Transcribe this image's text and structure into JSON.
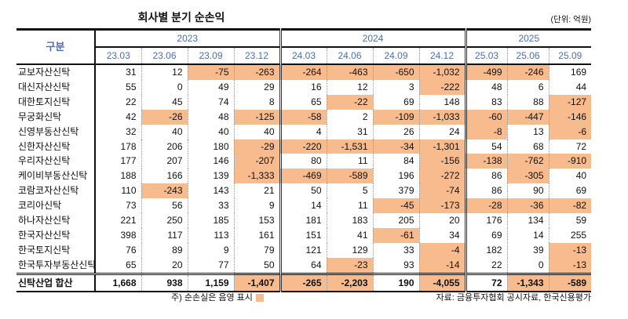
{
  "title": "회사별 분기 순손익",
  "unit": "(단위: 억원)",
  "header_label": "구분",
  "years": [
    {
      "label": "2023",
      "span": 4
    },
    {
      "label": "2024",
      "span": 4
    },
    {
      "label": "2025",
      "span": 3
    }
  ],
  "quarters": [
    "23.03",
    "23.06",
    "23.09",
    "23.12",
    "24.03",
    "24.06",
    "24.09",
    "24.12",
    "25.03",
    "25.06",
    "25.09"
  ],
  "rows": [
    {
      "name": "교보자산신탁",
      "values": [
        "31",
        "12",
        "-75",
        "-263",
        "-264",
        "-463",
        "-650",
        "-1,032",
        "-499",
        "-246",
        "169"
      ]
    },
    {
      "name": "대신자산신탁",
      "values": [
        "55",
        "0",
        "49",
        "29",
        "16",
        "12",
        "3",
        "-222",
        "48",
        "6",
        "44"
      ]
    },
    {
      "name": "대한토지신탁",
      "values": [
        "22",
        "45",
        "74",
        "8",
        "65",
        "-22",
        "69",
        "148",
        "83",
        "88",
        "-127"
      ]
    },
    {
      "name": "무궁화신탁",
      "values": [
        "42",
        "-26",
        "48",
        "-125",
        "-58",
        "2",
        "-109",
        "-1,033",
        "-60",
        "-447",
        "-146"
      ]
    },
    {
      "name": "신영부동산신탁",
      "values": [
        "32",
        "40",
        "40",
        "40",
        "4",
        "31",
        "26",
        "24",
        "-8",
        "13",
        "-6"
      ]
    },
    {
      "name": "신한자산신탁",
      "values": [
        "178",
        "206",
        "180",
        "-29",
        "-220",
        "-1,531",
        "-34",
        "-1,301",
        "54",
        "68",
        "72"
      ]
    },
    {
      "name": "우리자산신탁",
      "values": [
        "177",
        "207",
        "146",
        "-207",
        "80",
        "11",
        "84",
        "-156",
        "-138",
        "-762",
        "-910"
      ]
    },
    {
      "name": "케이비부동산신탁",
      "values": [
        "188",
        "166",
        "139",
        "-1,333",
        "-469",
        "-589",
        "196",
        "-272",
        "86",
        "-305",
        "40"
      ]
    },
    {
      "name": "코람코자산신탁",
      "values": [
        "110",
        "-243",
        "143",
        "21",
        "50",
        "5",
        "379",
        "-74",
        "86",
        "90",
        "69"
      ]
    },
    {
      "name": "코리아신탁",
      "values": [
        "73",
        "56",
        "33",
        "9",
        "14",
        "11",
        "-45",
        "-173",
        "-28",
        "-36",
        "-82"
      ]
    },
    {
      "name": "하나자산신탁",
      "values": [
        "221",
        "250",
        "185",
        "153",
        "181",
        "183",
        "205",
        "20",
        "176",
        "134",
        "59"
      ]
    },
    {
      "name": "한국자산신탁",
      "values": [
        "398",
        "117",
        "113",
        "161",
        "151",
        "41",
        "-61",
        "34",
        "69",
        "14",
        "255"
      ]
    },
    {
      "name": "한국토지신탁",
      "values": [
        "76",
        "89",
        "9",
        "79",
        "121",
        "129",
        "33",
        "-4",
        "182",
        "39",
        "-13"
      ]
    },
    {
      "name": "한국투자부동산신탁",
      "values": [
        "65",
        "20",
        "77",
        "50",
        "64",
        "-23",
        "93",
        "-14",
        "22",
        "0",
        "-13"
      ]
    }
  ],
  "total": {
    "name": "신탁산업 합산",
    "values": [
      "1,668",
      "938",
      "1,159",
      "-1,407",
      "-265",
      "-2,203",
      "190",
      "-4,055",
      "72",
      "-1,343",
      "-589"
    ]
  },
  "note": "주) 순손실은 음영 표시",
  "source": "자료: 금융투자협회 공시자료, 한국신용평가",
  "colors": {
    "loss_shade": "#f7bb8d",
    "header_blue": "#4a6fb5"
  }
}
